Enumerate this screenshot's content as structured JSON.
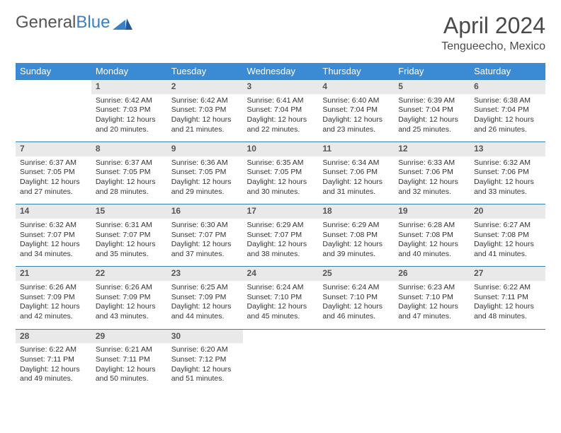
{
  "logo": {
    "text1": "General",
    "text2": "Blue"
  },
  "title": "April 2024",
  "location": "Tengueecho, Mexico",
  "colors": {
    "header_bg": "#3b8bd4",
    "header_text": "#ffffff",
    "daynum_bg": "#e9e9e9",
    "border": "#3b7fb0",
    "logo_blue": "#3b7fc4",
    "text": "#333333"
  },
  "weekdays": [
    "Sunday",
    "Monday",
    "Tuesday",
    "Wednesday",
    "Thursday",
    "Friday",
    "Saturday"
  ],
  "weeks": [
    {
      "nums": [
        "",
        "1",
        "2",
        "3",
        "4",
        "5",
        "6"
      ],
      "cells": [
        {},
        {
          "sr": "Sunrise: 6:42 AM",
          "ss": "Sunset: 7:03 PM",
          "d1": "Daylight: 12 hours",
          "d2": "and 20 minutes."
        },
        {
          "sr": "Sunrise: 6:42 AM",
          "ss": "Sunset: 7:03 PM",
          "d1": "Daylight: 12 hours",
          "d2": "and 21 minutes."
        },
        {
          "sr": "Sunrise: 6:41 AM",
          "ss": "Sunset: 7:04 PM",
          "d1": "Daylight: 12 hours",
          "d2": "and 22 minutes."
        },
        {
          "sr": "Sunrise: 6:40 AM",
          "ss": "Sunset: 7:04 PM",
          "d1": "Daylight: 12 hours",
          "d2": "and 23 minutes."
        },
        {
          "sr": "Sunrise: 6:39 AM",
          "ss": "Sunset: 7:04 PM",
          "d1": "Daylight: 12 hours",
          "d2": "and 25 minutes."
        },
        {
          "sr": "Sunrise: 6:38 AM",
          "ss": "Sunset: 7:04 PM",
          "d1": "Daylight: 12 hours",
          "d2": "and 26 minutes."
        }
      ]
    },
    {
      "nums": [
        "7",
        "8",
        "9",
        "10",
        "11",
        "12",
        "13"
      ],
      "cells": [
        {
          "sr": "Sunrise: 6:37 AM",
          "ss": "Sunset: 7:05 PM",
          "d1": "Daylight: 12 hours",
          "d2": "and 27 minutes."
        },
        {
          "sr": "Sunrise: 6:37 AM",
          "ss": "Sunset: 7:05 PM",
          "d1": "Daylight: 12 hours",
          "d2": "and 28 minutes."
        },
        {
          "sr": "Sunrise: 6:36 AM",
          "ss": "Sunset: 7:05 PM",
          "d1": "Daylight: 12 hours",
          "d2": "and 29 minutes."
        },
        {
          "sr": "Sunrise: 6:35 AM",
          "ss": "Sunset: 7:05 PM",
          "d1": "Daylight: 12 hours",
          "d2": "and 30 minutes."
        },
        {
          "sr": "Sunrise: 6:34 AM",
          "ss": "Sunset: 7:06 PM",
          "d1": "Daylight: 12 hours",
          "d2": "and 31 minutes."
        },
        {
          "sr": "Sunrise: 6:33 AM",
          "ss": "Sunset: 7:06 PM",
          "d1": "Daylight: 12 hours",
          "d2": "and 32 minutes."
        },
        {
          "sr": "Sunrise: 6:32 AM",
          "ss": "Sunset: 7:06 PM",
          "d1": "Daylight: 12 hours",
          "d2": "and 33 minutes."
        }
      ]
    },
    {
      "nums": [
        "14",
        "15",
        "16",
        "17",
        "18",
        "19",
        "20"
      ],
      "cells": [
        {
          "sr": "Sunrise: 6:32 AM",
          "ss": "Sunset: 7:07 PM",
          "d1": "Daylight: 12 hours",
          "d2": "and 34 minutes."
        },
        {
          "sr": "Sunrise: 6:31 AM",
          "ss": "Sunset: 7:07 PM",
          "d1": "Daylight: 12 hours",
          "d2": "and 35 minutes."
        },
        {
          "sr": "Sunrise: 6:30 AM",
          "ss": "Sunset: 7:07 PM",
          "d1": "Daylight: 12 hours",
          "d2": "and 37 minutes."
        },
        {
          "sr": "Sunrise: 6:29 AM",
          "ss": "Sunset: 7:07 PM",
          "d1": "Daylight: 12 hours",
          "d2": "and 38 minutes."
        },
        {
          "sr": "Sunrise: 6:29 AM",
          "ss": "Sunset: 7:08 PM",
          "d1": "Daylight: 12 hours",
          "d2": "and 39 minutes."
        },
        {
          "sr": "Sunrise: 6:28 AM",
          "ss": "Sunset: 7:08 PM",
          "d1": "Daylight: 12 hours",
          "d2": "and 40 minutes."
        },
        {
          "sr": "Sunrise: 6:27 AM",
          "ss": "Sunset: 7:08 PM",
          "d1": "Daylight: 12 hours",
          "d2": "and 41 minutes."
        }
      ]
    },
    {
      "nums": [
        "21",
        "22",
        "23",
        "24",
        "25",
        "26",
        "27"
      ],
      "cells": [
        {
          "sr": "Sunrise: 6:26 AM",
          "ss": "Sunset: 7:09 PM",
          "d1": "Daylight: 12 hours",
          "d2": "and 42 minutes."
        },
        {
          "sr": "Sunrise: 6:26 AM",
          "ss": "Sunset: 7:09 PM",
          "d1": "Daylight: 12 hours",
          "d2": "and 43 minutes."
        },
        {
          "sr": "Sunrise: 6:25 AM",
          "ss": "Sunset: 7:09 PM",
          "d1": "Daylight: 12 hours",
          "d2": "and 44 minutes."
        },
        {
          "sr": "Sunrise: 6:24 AM",
          "ss": "Sunset: 7:10 PM",
          "d1": "Daylight: 12 hours",
          "d2": "and 45 minutes."
        },
        {
          "sr": "Sunrise: 6:24 AM",
          "ss": "Sunset: 7:10 PM",
          "d1": "Daylight: 12 hours",
          "d2": "and 46 minutes."
        },
        {
          "sr": "Sunrise: 6:23 AM",
          "ss": "Sunset: 7:10 PM",
          "d1": "Daylight: 12 hours",
          "d2": "and 47 minutes."
        },
        {
          "sr": "Sunrise: 6:22 AM",
          "ss": "Sunset: 7:11 PM",
          "d1": "Daylight: 12 hours",
          "d2": "and 48 minutes."
        }
      ]
    },
    {
      "nums": [
        "28",
        "29",
        "30",
        "",
        "",
        "",
        ""
      ],
      "cells": [
        {
          "sr": "Sunrise: 6:22 AM",
          "ss": "Sunset: 7:11 PM",
          "d1": "Daylight: 12 hours",
          "d2": "and 49 minutes."
        },
        {
          "sr": "Sunrise: 6:21 AM",
          "ss": "Sunset: 7:11 PM",
          "d1": "Daylight: 12 hours",
          "d2": "and 50 minutes."
        },
        {
          "sr": "Sunrise: 6:20 AM",
          "ss": "Sunset: 7:12 PM",
          "d1": "Daylight: 12 hours",
          "d2": "and 51 minutes."
        },
        {},
        {},
        {},
        {}
      ]
    }
  ]
}
